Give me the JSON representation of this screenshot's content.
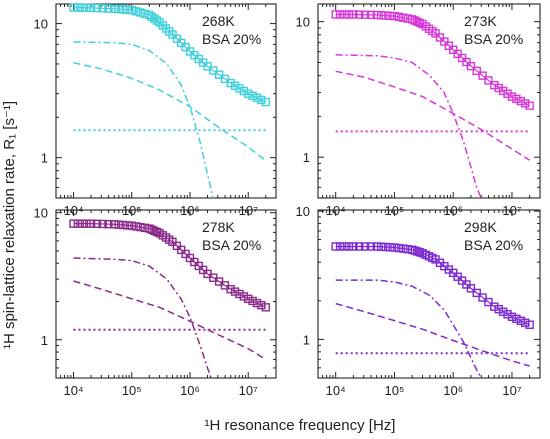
{
  "figure": {
    "ylabel": "¹H spin-lattice relaxation rate, R₁ [s⁻¹]",
    "xlabel": "¹H resonance frequency [Hz]"
  },
  "chart_data": [
    {
      "type": "scatter",
      "title": "268K",
      "subtitle": "BSA 20%",
      "xscale": "log",
      "yscale": "log",
      "xlim": [
        5000,
        30000000
      ],
      "ylim": [
        0.5,
        14
      ],
      "yticks": [
        "1",
        "10"
      ],
      "xticks": [
        "10⁴",
        "10⁵",
        "10⁶",
        "10⁷"
      ],
      "color": "#3fd0dc",
      "series": [
        {
          "style": "markers",
          "points": [
            [
              10000,
              13.2
            ],
            [
              20000,
              13.1
            ],
            [
              50000,
              12.9
            ],
            [
              100000,
              12.6
            ],
            [
              200000,
              11.6
            ],
            [
              300000,
              10.2
            ],
            [
              500000,
              8.3
            ],
            [
              1000000,
              6.2
            ],
            [
              2000000,
              4.8
            ],
            [
              5000000,
              3.6
            ],
            [
              10000000,
              3.0
            ],
            [
              20000000,
              2.6
            ]
          ]
        },
        {
          "style": "fit",
          "points": [
            [
              10000,
              13.2
            ],
            [
              20000,
              13.1
            ],
            [
              50000,
              12.9
            ],
            [
              100000,
              12.6
            ],
            [
              200000,
              11.6
            ],
            [
              300000,
              10.2
            ],
            [
              500000,
              8.3
            ],
            [
              1000000,
              6.2
            ],
            [
              2000000,
              4.8
            ],
            [
              5000000,
              3.6
            ],
            [
              10000000,
              3.0
            ],
            [
              20000000,
              2.6
            ]
          ]
        },
        {
          "style": "dashdot",
          "points": [
            [
              10000,
              7.3
            ],
            [
              50000,
              7.2
            ],
            [
              100000,
              7.0
            ],
            [
              200000,
              6.3
            ],
            [
              400000,
              5.0
            ],
            [
              700000,
              3.5
            ],
            [
              1000000,
              2.4
            ],
            [
              1500000,
              1.3
            ],
            [
              2000000,
              0.75
            ],
            [
              2500000,
              0.5
            ]
          ]
        },
        {
          "style": "dash",
          "points": [
            [
              10000,
              5.1
            ],
            [
              30000,
              4.6
            ],
            [
              100000,
              3.9
            ],
            [
              300000,
              3.2
            ],
            [
              1000000,
              2.4
            ],
            [
              3000000,
              1.7
            ],
            [
              10000000,
              1.2
            ],
            [
              20000000,
              0.95
            ]
          ]
        },
        {
          "style": "dot",
          "points": [
            [
              10000,
              1.6
            ],
            [
              20000000,
              1.6
            ]
          ]
        }
      ]
    },
    {
      "type": "scatter",
      "title": "273K",
      "subtitle": "BSA 20%",
      "xscale": "log",
      "yscale": "log",
      "xlim": [
        5000,
        30000000
      ],
      "ylim": [
        0.5,
        13.5
      ],
      "yticks": [
        "1",
        "10"
      ],
      "xticks": [
        "10⁴",
        "10⁵",
        "10⁶",
        "10⁷"
      ],
      "color": "#d838d8",
      "series": [
        {
          "style": "markers",
          "points": [
            [
              10000,
              11.3
            ],
            [
              20000,
              11.3
            ],
            [
              50000,
              11.2
            ],
            [
              100000,
              11.0
            ],
            [
              200000,
              10.4
            ],
            [
              300000,
              9.6
            ],
            [
              500000,
              8.2
            ],
            [
              1000000,
              6.2
            ],
            [
              2000000,
              4.7
            ],
            [
              5000000,
              3.4
            ],
            [
              10000000,
              2.8
            ],
            [
              20000000,
              2.4
            ]
          ]
        },
        {
          "style": "fit",
          "points": [
            [
              10000,
              11.3
            ],
            [
              20000,
              11.3
            ],
            [
              50000,
              11.2
            ],
            [
              100000,
              11.0
            ],
            [
              200000,
              10.4
            ],
            [
              300000,
              9.6
            ],
            [
              500000,
              8.2
            ],
            [
              1000000,
              6.2
            ],
            [
              2000000,
              4.7
            ],
            [
              5000000,
              3.4
            ],
            [
              10000000,
              2.8
            ],
            [
              20000000,
              2.4
            ]
          ]
        },
        {
          "style": "dashdot",
          "points": [
            [
              10000,
              5.7
            ],
            [
              50000,
              5.6
            ],
            [
              100000,
              5.4
            ],
            [
              200000,
              5.0
            ],
            [
              400000,
              4.0
            ],
            [
              700000,
              3.0
            ],
            [
              1000000,
              2.1
            ],
            [
              1500000,
              1.3
            ],
            [
              2000000,
              0.85
            ],
            [
              2500000,
              0.6
            ],
            [
              3000000,
              0.5
            ]
          ]
        },
        {
          "style": "dash",
          "points": [
            [
              10000,
              4.3
            ],
            [
              30000,
              3.9
            ],
            [
              100000,
              3.3
            ],
            [
              300000,
              2.8
            ],
            [
              1000000,
              2.1
            ],
            [
              3000000,
              1.6
            ],
            [
              10000000,
              1.15
            ],
            [
              20000000,
              0.95
            ]
          ]
        },
        {
          "style": "dot",
          "points": [
            [
              10000,
              1.55
            ],
            [
              20000000,
              1.55
            ]
          ]
        }
      ]
    },
    {
      "type": "scatter",
      "title": "278K",
      "subtitle": "BSA 20%",
      "xscale": "log",
      "yscale": "log",
      "xlim": [
        5000,
        30000000
      ],
      "ylim": [
        0.5,
        10.5
      ],
      "yticks": [
        "1",
        "10"
      ],
      "xticks": [
        "10⁴",
        "10⁵",
        "10⁶",
        "10⁷"
      ],
      "color": "#8c2a8c",
      "series": [
        {
          "style": "markers",
          "points": [
            [
              10000,
              8.2
            ],
            [
              20000,
              8.2
            ],
            [
              50000,
              8.1
            ],
            [
              100000,
              7.9
            ],
            [
              200000,
              7.5
            ],
            [
              300000,
              6.9
            ],
            [
              500000,
              5.9
            ],
            [
              1000000,
              4.4
            ],
            [
              2000000,
              3.3
            ],
            [
              5000000,
              2.5
            ],
            [
              10000000,
              2.1
            ],
            [
              20000000,
              1.8
            ]
          ]
        },
        {
          "style": "fit",
          "points": [
            [
              10000,
              8.2
            ],
            [
              20000,
              8.2
            ],
            [
              50000,
              8.1
            ],
            [
              100000,
              7.9
            ],
            [
              200000,
              7.5
            ],
            [
              300000,
              6.9
            ],
            [
              500000,
              5.9
            ],
            [
              1000000,
              4.4
            ],
            [
              2000000,
              3.3
            ],
            [
              5000000,
              2.5
            ],
            [
              10000000,
              2.1
            ],
            [
              20000000,
              1.8
            ]
          ]
        },
        {
          "style": "dashdot",
          "points": [
            [
              10000,
              4.4
            ],
            [
              50000,
              4.3
            ],
            [
              100000,
              4.2
            ],
            [
              200000,
              3.8
            ],
            [
              400000,
              3.0
            ],
            [
              700000,
              2.1
            ],
            [
              1000000,
              1.5
            ],
            [
              1500000,
              0.9
            ],
            [
              2000000,
              0.6
            ],
            [
              2300000,
              0.5
            ]
          ]
        },
        {
          "style": "dash",
          "points": [
            [
              10000,
              2.9
            ],
            [
              30000,
              2.5
            ],
            [
              100000,
              2.1
            ],
            [
              300000,
              1.8
            ],
            [
              1000000,
              1.4
            ],
            [
              3000000,
              1.1
            ],
            [
              10000000,
              0.85
            ],
            [
              20000000,
              0.7
            ]
          ]
        },
        {
          "style": "dot",
          "points": [
            [
              10000,
              1.2
            ],
            [
              20000000,
              1.2
            ]
          ]
        }
      ]
    },
    {
      "type": "scatter",
      "title": "298K",
      "subtitle": "BSA 20%",
      "xscale": "log",
      "yscale": "log",
      "xlim": [
        5000,
        30000000
      ],
      "ylim": [
        0.5,
        10.2
      ],
      "yticks": [
        "1",
        "10"
      ],
      "xticks": [
        "10⁴",
        "10⁵",
        "10⁶",
        "10⁷"
      ],
      "color": "#7e2ad2",
      "series": [
        {
          "style": "markers",
          "points": [
            [
              10000,
              5.3
            ],
            [
              20000,
              5.3
            ],
            [
              50000,
              5.3
            ],
            [
              100000,
              5.2
            ],
            [
              200000,
              5.0
            ],
            [
              300000,
              4.7
            ],
            [
              500000,
              4.2
            ],
            [
              1000000,
              3.3
            ],
            [
              2000000,
              2.5
            ],
            [
              5000000,
              1.8
            ],
            [
              10000000,
              1.5
            ],
            [
              20000000,
              1.3
            ]
          ]
        },
        {
          "style": "fit",
          "points": [
            [
              10000,
              5.3
            ],
            [
              20000,
              5.3
            ],
            [
              50000,
              5.3
            ],
            [
              100000,
              5.2
            ],
            [
              200000,
              5.0
            ],
            [
              300000,
              4.7
            ],
            [
              500000,
              4.2
            ],
            [
              1000000,
              3.3
            ],
            [
              2000000,
              2.5
            ],
            [
              5000000,
              1.8
            ],
            [
              10000000,
              1.5
            ],
            [
              20000000,
              1.3
            ]
          ]
        },
        {
          "style": "dashdot",
          "points": [
            [
              10000,
              2.9
            ],
            [
              50000,
              2.9
            ],
            [
              100000,
              2.8
            ],
            [
              200000,
              2.6
            ],
            [
              400000,
              2.2
            ],
            [
              700000,
              1.7
            ],
            [
              1000000,
              1.3
            ],
            [
              1500000,
              0.95
            ],
            [
              2000000,
              0.72
            ],
            [
              2500000,
              0.58
            ],
            [
              3000000,
              0.5
            ]
          ]
        },
        {
          "style": "dash",
          "points": [
            [
              10000,
              1.9
            ],
            [
              30000,
              1.65
            ],
            [
              100000,
              1.4
            ],
            [
              300000,
              1.2
            ],
            [
              1000000,
              0.98
            ],
            [
              3000000,
              0.82
            ],
            [
              10000000,
              0.68
            ],
            [
              20000000,
              0.62
            ]
          ]
        },
        {
          "style": "dot",
          "points": [
            [
              10000,
              0.78
            ],
            [
              20000000,
              0.78
            ]
          ]
        }
      ]
    }
  ]
}
